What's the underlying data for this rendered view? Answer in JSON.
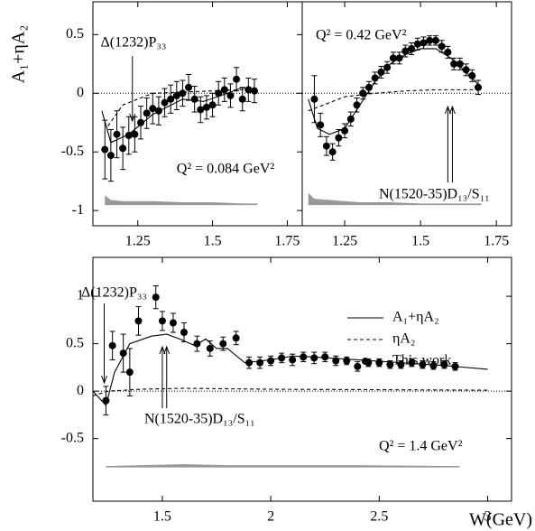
{
  "chart_data": [
    {
      "type": "scatter",
      "ylabel": "A₁+ηA₂",
      "label": "Q² = 0.084 GeV²",
      "xlim": [
        1.1,
        1.8
      ],
      "ylim": [
        -1.13,
        0.78
      ],
      "xticks": [
        1.25,
        1.5,
        1.75
      ],
      "yticks": [
        0.5,
        0,
        -0.5,
        -1
      ],
      "zero_line": true,
      "annotations": [
        {
          "text": "Δ(1232)P₃₃",
          "x": [
            1.232
          ]
        }
      ],
      "band": {
        "color": "#999999",
        "base": -0.95,
        "x": [
          1.14,
          1.16,
          1.2,
          1.3,
          1.4,
          1.5,
          1.6,
          1.65
        ],
        "upper": [
          -0.87,
          -0.91,
          -0.92,
          -0.92,
          -0.93,
          -0.93,
          -0.94,
          -0.94
        ]
      },
      "series": [
        {
          "style": "points",
          "color": "#000000",
          "x": [
            1.14,
            1.16,
            1.18,
            1.2,
            1.22,
            1.24,
            1.26,
            1.28,
            1.3,
            1.32,
            1.34,
            1.36,
            1.38,
            1.4,
            1.42,
            1.44,
            1.46,
            1.48,
            1.5,
            1.52,
            1.54,
            1.56,
            1.58,
            1.6,
            1.62,
            1.64
          ],
          "values": [
            -0.48,
            -0.53,
            -0.35,
            -0.47,
            -0.36,
            -0.35,
            -0.25,
            -0.17,
            -0.13,
            -0.15,
            -0.08,
            -0.05,
            -0.02,
            0.0,
            0.05,
            -0.05,
            -0.14,
            -0.12,
            -0.1,
            0.0,
            0.03,
            -0.02,
            0.12,
            -0.05,
            0.03,
            0.02
          ],
          "errors": [
            0.25,
            0.22,
            0.2,
            0.18,
            0.16,
            0.15,
            0.14,
            0.13,
            0.13,
            0.12,
            0.12,
            0.12,
            0.12,
            0.11,
            0.11,
            0.11,
            0.11,
            0.1,
            0.1,
            0.1,
            0.1,
            0.1,
            0.1,
            0.1,
            0.1,
            0.1
          ]
        },
        {
          "style": "solid",
          "color": "#000000",
          "x": [
            1.13,
            1.16,
            1.22,
            1.3,
            1.4,
            1.47,
            1.55,
            1.6,
            1.65
          ],
          "values": [
            -0.15,
            -0.42,
            -0.35,
            -0.18,
            -0.05,
            -0.07,
            0.0,
            0.05,
            0.0
          ]
        },
        {
          "style": "dashed",
          "color": "#000000",
          "x": [
            1.15,
            1.2,
            1.3,
            1.4,
            1.5,
            1.6,
            1.65
          ],
          "values": [
            -0.28,
            -0.1,
            0.0,
            0.01,
            0.02,
            0.03,
            0.03
          ]
        }
      ]
    },
    {
      "type": "scatter",
      "label": "Q² = 0.42 GeV²",
      "xlim": [
        1.11,
        1.8
      ],
      "ylim": [
        -1.13,
        0.78
      ],
      "xticks": [
        1.25,
        1.5,
        1.75
      ],
      "zero_line": true,
      "annotations": [
        {
          "text": "N(1520-35)D₁₃/S₁₁",
          "x": [
            1.59,
            1.605
          ]
        }
      ],
      "band": {
        "color": "#999999",
        "base": -0.95,
        "x": [
          1.13,
          1.15,
          1.2,
          1.3,
          1.4,
          1.5,
          1.6,
          1.7
        ],
        "upper": [
          -0.85,
          -0.9,
          -0.91,
          -0.93,
          -0.93,
          -0.94,
          -0.94,
          -0.94
        ]
      },
      "series": [
        {
          "style": "points",
          "color": "#000000",
          "x": [
            1.15,
            1.17,
            1.19,
            1.21,
            1.23,
            1.25,
            1.27,
            1.29,
            1.31,
            1.33,
            1.35,
            1.37,
            1.39,
            1.41,
            1.43,
            1.45,
            1.47,
            1.49,
            1.51,
            1.53,
            1.55,
            1.57,
            1.59,
            1.61,
            1.63,
            1.65,
            1.67,
            1.69
          ],
          "values": [
            -0.05,
            -0.27,
            -0.45,
            -0.5,
            -0.38,
            -0.32,
            -0.22,
            -0.1,
            0.0,
            0.05,
            0.13,
            0.18,
            0.22,
            0.3,
            0.3,
            0.36,
            0.38,
            0.42,
            0.43,
            0.45,
            0.45,
            0.4,
            0.35,
            0.25,
            0.25,
            0.2,
            0.15,
            0.05
          ],
          "errors": [
            0.2,
            0.1,
            0.08,
            0.07,
            0.07,
            0.06,
            0.06,
            0.06,
            0.05,
            0.05,
            0.05,
            0.05,
            0.05,
            0.05,
            0.05,
            0.05,
            0.05,
            0.05,
            0.05,
            0.04,
            0.04,
            0.05,
            0.05,
            0.05,
            0.05,
            0.05,
            0.05,
            0.06
          ]
        },
        {
          "style": "solid",
          "color": "#000000",
          "x": [
            1.13,
            1.16,
            1.2,
            1.25,
            1.3,
            1.35,
            1.4,
            1.45,
            1.5,
            1.55,
            1.6,
            1.65,
            1.7
          ],
          "values": [
            -0.05,
            -0.3,
            -0.35,
            -0.3,
            -0.1,
            0.1,
            0.25,
            0.33,
            0.38,
            0.38,
            0.3,
            0.18,
            0.05
          ]
        },
        {
          "style": "dashed",
          "color": "#000000",
          "x": [
            1.13,
            1.18,
            1.25,
            1.35,
            1.45,
            1.55,
            1.65,
            1.7
          ],
          "values": [
            -0.15,
            -0.1,
            -0.03,
            0.0,
            0.02,
            0.03,
            0.03,
            0.03
          ]
        }
      ]
    },
    {
      "type": "scatter",
      "xlabel": "W(GeV)",
      "label": "Q² = 1.4 GeV²",
      "xlim": [
        1.18,
        3.11
      ],
      "ylim": [
        -1.16,
        1.41
      ],
      "xticks": [
        1.5,
        2,
        2.5,
        3
      ],
      "yticks": [
        1,
        0.5,
        0,
        -0.5
      ],
      "zero_line": true,
      "annotations": [
        {
          "text": "Δ(1232)P₃₃",
          "x": [
            1.232
          ]
        },
        {
          "text": "N(1520-35)D₁₃/S₁₁",
          "x": [
            1.5,
            1.52
          ]
        }
      ],
      "band": {
        "color": "#999999",
        "base": -0.8,
        "x": [
          1.24,
          1.4,
          1.6,
          1.8,
          2.0,
          2.4,
          2.87
        ],
        "upper": [
          -0.79,
          -0.78,
          -0.77,
          -0.78,
          -0.78,
          -0.78,
          -0.79
        ]
      },
      "series": [
        {
          "style": "solid",
          "name": "A₁+ηA₂",
          "color": "#000000",
          "x": [
            1.18,
            1.24,
            1.28,
            1.35,
            1.45,
            1.52,
            1.58,
            1.65,
            1.7,
            1.75,
            1.8,
            1.88,
            2.0,
            2.1,
            2.2,
            2.4,
            2.6,
            2.8,
            3.0
          ],
          "values": [
            0.0,
            -0.15,
            0.2,
            0.5,
            0.58,
            0.6,
            0.55,
            0.48,
            0.55,
            0.45,
            0.45,
            0.3,
            0.33,
            0.37,
            0.36,
            0.33,
            0.3,
            0.27,
            0.23
          ]
        },
        {
          "style": "dashed",
          "name": "ηA₂",
          "color": "#000000",
          "x": [
            1.18,
            1.25,
            1.4,
            1.6,
            2.0,
            3.0
          ],
          "values": [
            -0.05,
            0.0,
            0.02,
            0.03,
            0.02,
            0.01
          ]
        },
        {
          "style": "points",
          "name": "This work",
          "color": "#000000",
          "x": [
            1.24,
            1.27,
            1.32,
            1.35,
            1.39,
            1.47,
            1.5,
            1.55,
            1.6,
            1.66,
            1.72,
            1.78,
            1.84,
            1.9,
            1.95,
            2.0,
            2.05,
            2.1,
            2.15,
            2.2,
            2.25,
            2.3,
            2.35,
            2.4,
            2.45,
            2.5,
            2.55,
            2.6,
            2.65,
            2.7,
            2.75,
            2.8,
            2.85
          ],
          "values": [
            -0.1,
            0.48,
            0.4,
            0.2,
            0.74,
            0.99,
            0.74,
            0.72,
            0.62,
            0.5,
            0.45,
            0.5,
            0.56,
            0.3,
            0.3,
            0.32,
            0.35,
            0.33,
            0.36,
            0.35,
            0.36,
            0.32,
            0.32,
            0.26,
            0.3,
            0.3,
            0.28,
            0.28,
            0.3,
            0.28,
            0.27,
            0.28,
            0.26
          ],
          "errors": [
            0.15,
            0.15,
            0.2,
            0.25,
            0.15,
            0.12,
            0.1,
            0.1,
            0.1,
            0.08,
            0.08,
            0.07,
            0.07,
            0.06,
            0.06,
            0.05,
            0.05,
            0.06,
            0.05,
            0.06,
            0.05,
            0.05,
            0.04,
            0.05,
            0.04,
            0.04,
            0.04,
            0.04,
            0.04,
            0.04,
            0.04,
            0.04,
            0.04
          ]
        }
      ]
    }
  ]
}
